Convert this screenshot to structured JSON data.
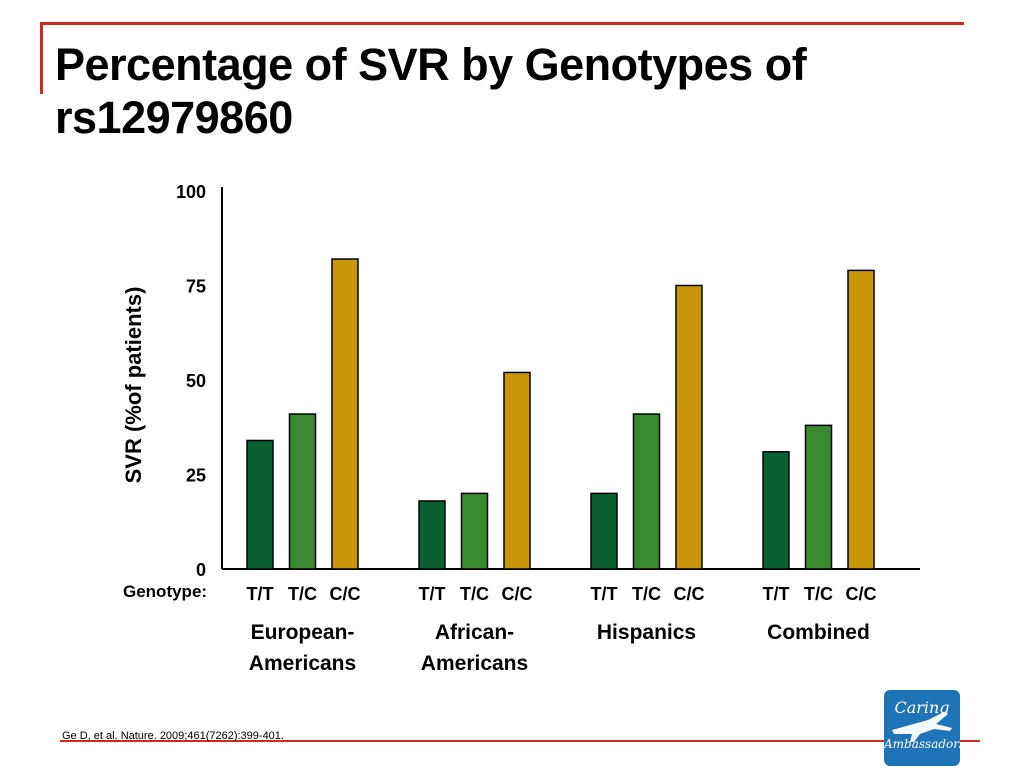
{
  "slide": {
    "title": "Percentage of SVR by Genotypes of rs12979860",
    "citation": "Ge D, et al. Nature. 2009;461(7262):399-401.",
    "logo": {
      "line1": "Caring",
      "line2": "Ambassadors",
      "icon": "airplane-icon"
    }
  },
  "chart_data": {
    "type": "bar",
    "ylabel": "SVR (%of patients)",
    "xlabel": "Genotype:",
    "ylim": [
      0,
      100
    ],
    "yticks": [
      0,
      25,
      50,
      75,
      100
    ],
    "grid": false,
    "legend": "none",
    "groups": [
      {
        "label_lines": [
          "European-",
          "Americans"
        ],
        "bars": [
          {
            "genotype": "T/T",
            "value": 34
          },
          {
            "genotype": "T/C",
            "value": 41
          },
          {
            "genotype": "C/C",
            "value": 82
          }
        ]
      },
      {
        "label_lines": [
          "African-",
          "Americans"
        ],
        "bars": [
          {
            "genotype": "T/T",
            "value": 18
          },
          {
            "genotype": "T/C",
            "value": 20
          },
          {
            "genotype": "C/C",
            "value": 52
          }
        ]
      },
      {
        "label_lines": [
          "Hispanics"
        ],
        "bars": [
          {
            "genotype": "T/T",
            "value": 20
          },
          {
            "genotype": "T/C",
            "value": 41
          },
          {
            "genotype": "C/C",
            "value": 75
          }
        ]
      },
      {
        "label_lines": [
          "Combined"
        ],
        "bars": [
          {
            "genotype": "T/T",
            "value": 31
          },
          {
            "genotype": "T/C",
            "value": 38
          },
          {
            "genotype": "C/C",
            "value": 79
          }
        ]
      }
    ],
    "colors": {
      "T/T": "#0a6030",
      "T/C": "#3a8a30",
      "C/C": "#c8980a"
    }
  }
}
